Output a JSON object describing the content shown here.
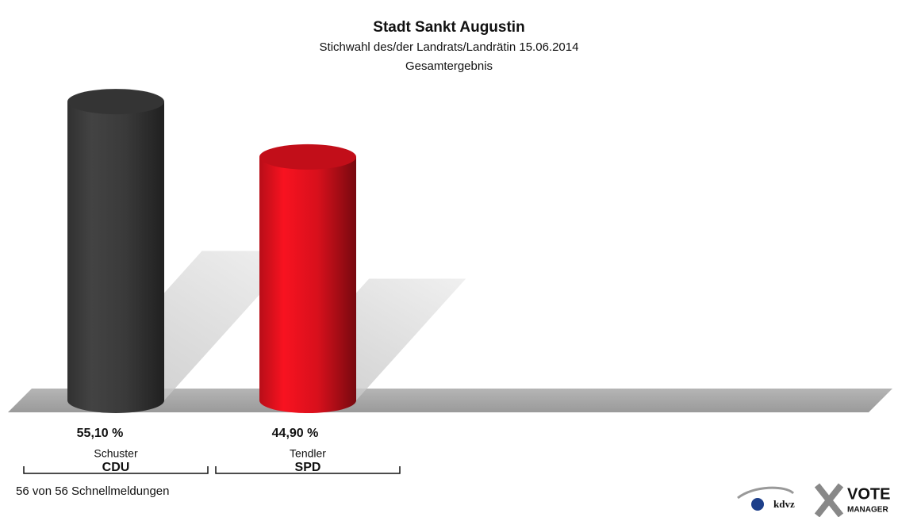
{
  "chart_data": {
    "type": "bar",
    "title": "Stadt Sankt Augustin",
    "subtitle": "Stichwahl des/der Landrats/Landrätin 15.06.2014",
    "subtitle2": "Gesamtergebnis",
    "categories": [
      "Schuster",
      "Tendler"
    ],
    "parties": [
      "CDU",
      "SPD"
    ],
    "values": [
      55.1,
      44.9
    ],
    "value_labels": [
      "55,10 %",
      "44,90 %"
    ],
    "colors": [
      "#3a3a3a",
      "#d8101c"
    ],
    "footer": "56 von 56 Schnellmeldungen",
    "logo": {
      "left": "kdvz",
      "right": "VOTE",
      "right_sub": "MANAGER"
    }
  }
}
